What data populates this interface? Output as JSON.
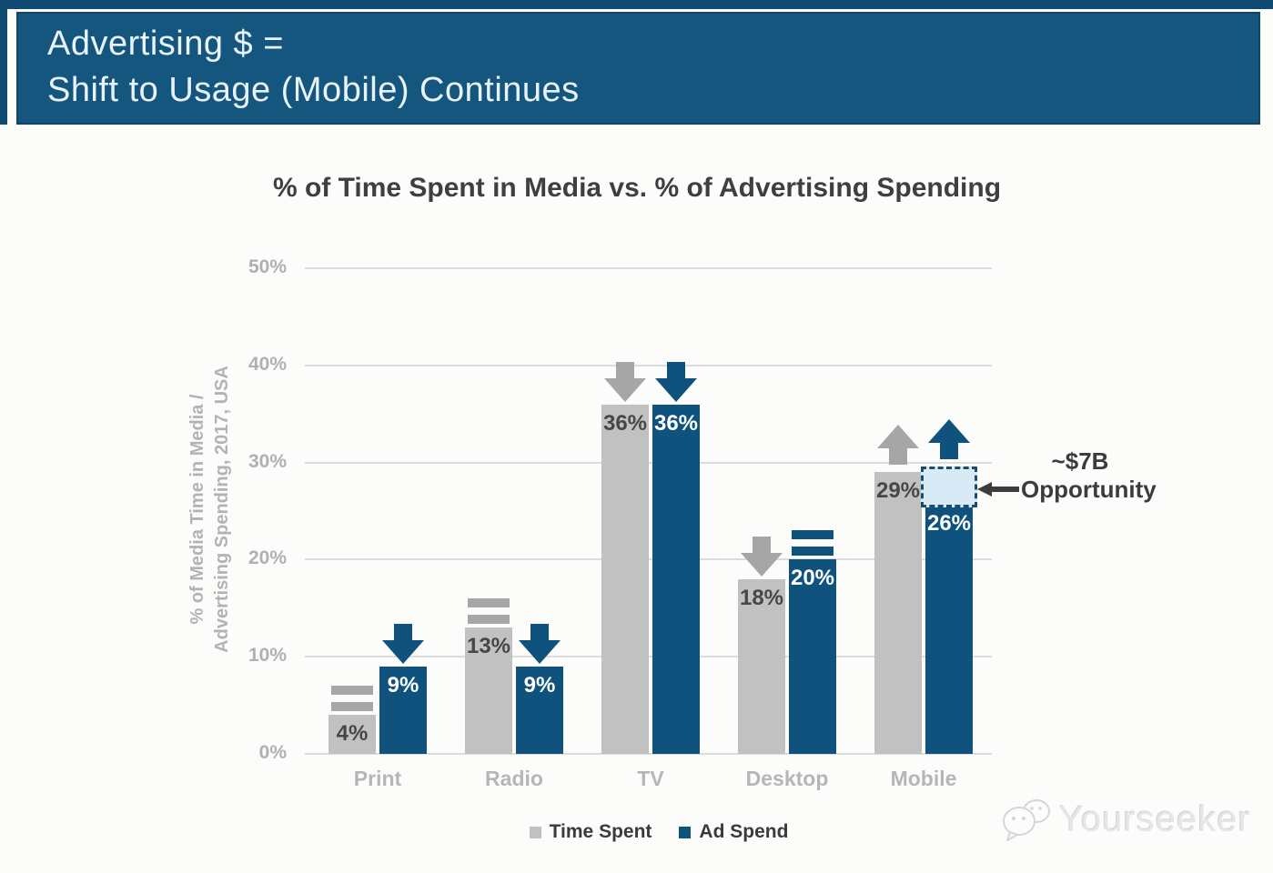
{
  "banner": {
    "line1": "Advertising $ =",
    "line2": "Shift to Usage (Mobile) Continues"
  },
  "chart_title": "% of Time Spent in Media vs. % of Advertising Spending",
  "chart_data": {
    "type": "bar",
    "title": "% of Time Spent in Media vs. % of Advertising Spending",
    "categories": [
      "Print",
      "Radio",
      "TV",
      "Desktop",
      "Mobile"
    ],
    "series": [
      {
        "name": "Time Spent",
        "values": [
          4,
          13,
          36,
          18,
          29
        ],
        "trends": [
          "equal",
          "equal",
          "down",
          "down",
          "up"
        ],
        "color": "#c1c1c1",
        "icon_color": "#a6a6a6",
        "label_color": "#474747"
      },
      {
        "name": "Ad Spend",
        "values": [
          9,
          9,
          36,
          20,
          26
        ],
        "trends": [
          "down",
          "down",
          "down",
          "equal",
          "up"
        ],
        "color": "#0f527d",
        "icon_color": "#0f527d",
        "label_color": "#ffffff"
      }
    ],
    "xlabel": "",
    "ylabel_line1": "% of Media Time in Media /",
    "ylabel_line2": "Advertising Spending, 2017, USA",
    "ylim": [
      0,
      50
    ],
    "yticks": [
      0,
      10,
      20,
      30,
      40,
      50
    ],
    "grid": true,
    "legend_position": "bottom",
    "annotation": {
      "line1": "~$7B",
      "line2": "Opportunity",
      "category": "Mobile",
      "series": "Ad Spend",
      "box_from_value": 26,
      "box_to_value": 29.6,
      "box_fill": "#d9eaf7",
      "box_border": "#1b4b6e"
    }
  },
  "legend": {
    "items": [
      {
        "label": "Time Spent",
        "color": "#c1c1c1"
      },
      {
        "label": "Ad Spend",
        "color": "#0f527d"
      }
    ]
  },
  "watermark": {
    "text": "Yourseeker"
  },
  "colors": {
    "banner_bg": "#15567f",
    "banner_edge": "#0f4a72",
    "accent_blue": "#0f527d",
    "bar_gray": "#c1c1c1",
    "grid": "#dcdcdc"
  }
}
